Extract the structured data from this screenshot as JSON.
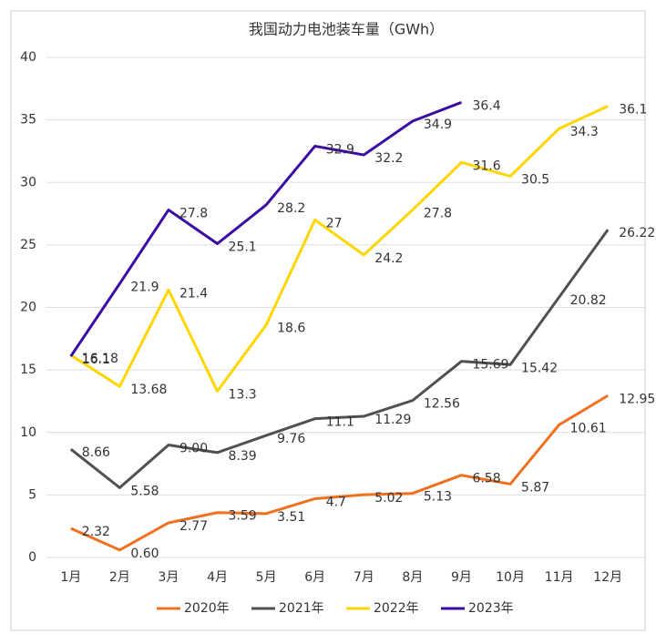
{
  "chart_data": {
    "type": "line",
    "title": "我国动力电池装车量（GWh）",
    "categories": [
      "1月",
      "2月",
      "3月",
      "4月",
      "5月",
      "6月",
      "7月",
      "8月",
      "9月",
      "10月",
      "11月",
      "12月"
    ],
    "series": [
      {
        "name": "2020年",
        "color": "#f07020",
        "values": [
          2.32,
          0.6,
          2.77,
          3.59,
          3.51,
          4.7,
          5.02,
          5.13,
          6.58,
          5.87,
          10.61,
          12.95
        ],
        "value_labels": [
          "2.32",
          "0.60",
          "2.77",
          "3.59",
          "3.51",
          "4.7",
          "5.02",
          "5.13",
          "6.58",
          "5.87",
          "10.61",
          "12.95"
        ]
      },
      {
        "name": "2021年",
        "color": "#505050",
        "values": [
          8.66,
          5.58,
          9.0,
          8.39,
          9.76,
          11.1,
          11.29,
          12.56,
          15.69,
          15.42,
          20.82,
          26.22
        ],
        "value_labels": [
          "8.66",
          "5.58",
          "9.00",
          "8.39",
          "9.76",
          "11.1",
          "11.29",
          "12.56",
          "15.69",
          "15.42",
          "20.82",
          "26.22"
        ]
      },
      {
        "name": "2022年",
        "color": "#ffd500",
        "values": [
          16.18,
          13.68,
          21.4,
          13.3,
          18.6,
          27,
          24.2,
          27.8,
          31.6,
          30.5,
          34.3,
          36.1
        ]
      },
      {
        "name": "2023年",
        "color": "#3a0ca3",
        "values": [
          16.1,
          21.9,
          27.8,
          25.1,
          28.2,
          32.9,
          32.2,
          34.9,
          36.4,
          null,
          null,
          null
        ]
      }
    ],
    "ylim": [
      0,
      40
    ],
    "yticks": [
      0,
      5,
      10,
      15,
      20,
      25,
      30,
      35,
      40
    ],
    "grid": true,
    "legend": "bottom"
  }
}
